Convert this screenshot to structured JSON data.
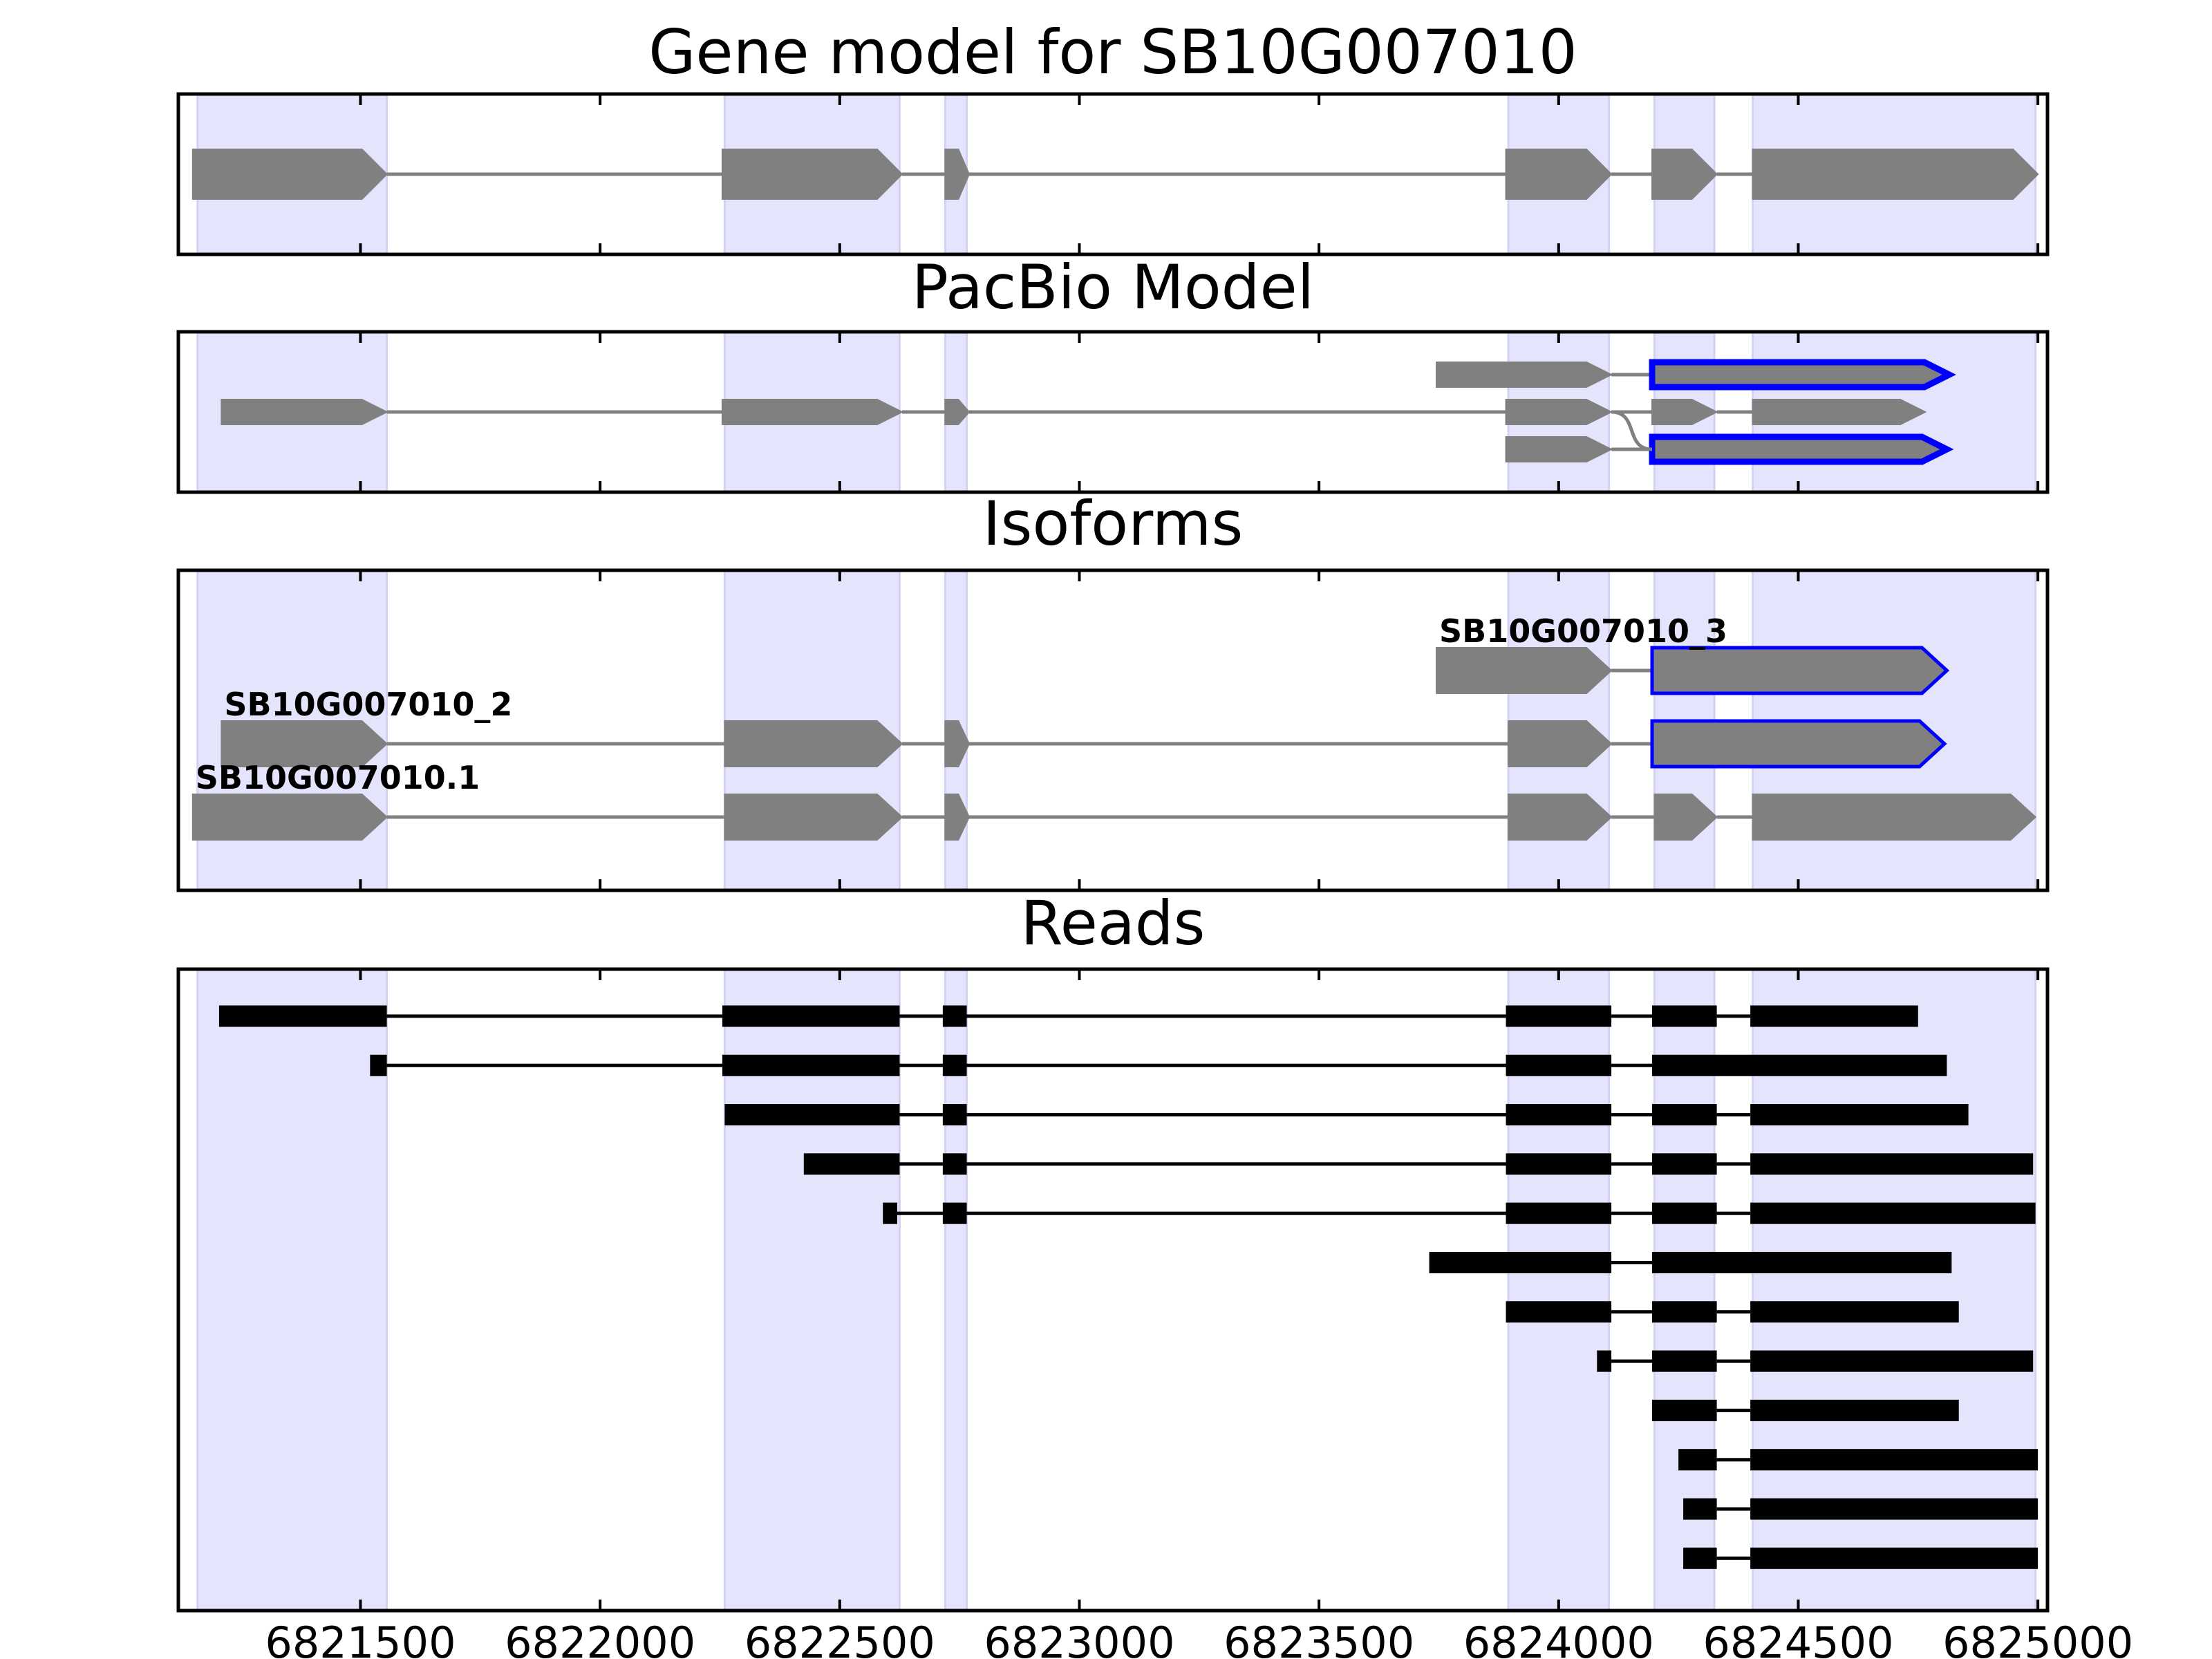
{
  "chart_data": {
    "type": "gene-model-tracks",
    "x_range": [
      6821120,
      6825020
    ],
    "x_ticks": [
      6821500,
      6822000,
      6822500,
      6823000,
      6823500,
      6824000,
      6824500,
      6825000
    ],
    "tick_labels": [
      "6821500",
      "6822000",
      "6822500",
      "6823000",
      "6823500",
      "6824000",
      "6824500",
      "6825000"
    ],
    "colors": {
      "exon_highlight": "#e4e4fc",
      "exon_fill": "#808080",
      "intron_line": "#808080",
      "novel_outline": "#0000ff",
      "read_fill": "#000000"
    },
    "exon_highlights": [
      [
        6821160,
        6821555
      ],
      [
        6822260,
        6822625
      ],
      [
        6822720,
        6822765
      ],
      [
        6823895,
        6824105
      ],
      [
        6824200,
        6824325
      ],
      [
        6824405,
        6824995
      ]
    ],
    "panels": [
      {
        "title": "Gene model for SB10G007010",
        "rows": 1,
        "tracks": [
          {
            "row": 0,
            "exons": [
              [
                6821150,
                6821555
              ],
              [
                6822255,
                6822630
              ],
              [
                6822720,
                6822770
              ],
              [
                6823890,
                6824110
              ],
              [
                6824195,
                6824330
              ],
              [
                6824405,
                6825000
              ]
            ]
          }
        ]
      },
      {
        "title": "PacBio Model",
        "rows": 3,
        "tracks": [
          {
            "row": 0,
            "exons": [
              [
                6823745,
                6824110
              ]
            ],
            "novel": [
              [
                6824195,
                6824815
              ]
            ]
          },
          {
            "row": 1,
            "exons": [
              [
                6821210,
                6821555
              ],
              [
                6822255,
                6822630
              ],
              [
                6822720,
                6822770
              ],
              [
                6823890,
                6824110
              ],
              [
                6824195,
                6824330
              ],
              [
                6824405,
                6824765
              ]
            ]
          },
          {
            "row": 2,
            "exons": [
              [
                6823890,
                6824110
              ]
            ],
            "novel": [
              [
                6824195,
                6824810
              ]
            ]
          }
        ]
      },
      {
        "title": "Isoforms",
        "rows": 3,
        "tracks": [
          {
            "row": 0,
            "label": "SB10G007010_3",
            "exons": [
              [
                6823745,
                6824110
              ]
            ],
            "novel": [
              [
                6824195,
                6824810
              ]
            ]
          },
          {
            "row": 1,
            "label": "SB10G007010_2",
            "exons": [
              [
                6821210,
                6821555
              ],
              [
                6822260,
                6822630
              ],
              [
                6822720,
                6822770
              ],
              [
                6823895,
                6824110
              ]
            ],
            "novel": [
              [
                6824195,
                6824805
              ]
            ]
          },
          {
            "row": 2,
            "label": "SB10G007010.1",
            "exons": [
              [
                6821150,
                6821555
              ],
              [
                6822260,
                6822630
              ],
              [
                6822720,
                6822770
              ],
              [
                6823895,
                6824110
              ],
              [
                6824200,
                6824330
              ],
              [
                6824405,
                6824995
              ]
            ]
          }
        ]
      },
      {
        "title": "Reads",
        "rows": 12,
        "tracks": [
          {
            "row": 0,
            "exons": [
              [
                6821205,
                6821555
              ],
              [
                6822255,
                6822625
              ],
              [
                6822715,
                6822765
              ],
              [
                6823890,
                6824110
              ],
              [
                6824195,
                6824330
              ],
              [
                6824400,
                6824750
              ]
            ]
          },
          {
            "row": 1,
            "exons": [
              [
                6821520,
                6821555
              ],
              [
                6822255,
                6822625
              ],
              [
                6822715,
                6822765
              ],
              [
                6823890,
                6824110
              ],
              [
                6824195,
                6824810
              ]
            ]
          },
          {
            "row": 2,
            "exons": [
              [
                6822260,
                6822625
              ],
              [
                6822715,
                6822765
              ],
              [
                6823890,
                6824110
              ],
              [
                6824195,
                6824330
              ],
              [
                6824400,
                6824855
              ]
            ]
          },
          {
            "row": 3,
            "exons": [
              [
                6822425,
                6822625
              ],
              [
                6822715,
                6822765
              ],
              [
                6823890,
                6824110
              ],
              [
                6824195,
                6824330
              ],
              [
                6824400,
                6824990
              ]
            ]
          },
          {
            "row": 4,
            "exons": [
              [
                6822590,
                6822620
              ],
              [
                6822715,
                6822765
              ],
              [
                6823890,
                6824110
              ],
              [
                6824195,
                6824330
              ],
              [
                6824400,
                6824995
              ]
            ]
          },
          {
            "row": 5,
            "exons": [
              [
                6823730,
                6824110
              ],
              [
                6824195,
                6824820
              ]
            ]
          },
          {
            "row": 6,
            "exons": [
              [
                6823890,
                6824110
              ],
              [
                6824195,
                6824330
              ],
              [
                6824400,
                6824835
              ]
            ]
          },
          {
            "row": 7,
            "exons": [
              [
                6824080,
                6824110
              ],
              [
                6824195,
                6824330
              ],
              [
                6824400,
                6824990
              ]
            ]
          },
          {
            "row": 8,
            "exons": [
              [
                6824195,
                6824330
              ],
              [
                6824400,
                6824835
              ]
            ]
          },
          {
            "row": 9,
            "exons": [
              [
                6824250,
                6824330
              ],
              [
                6824400,
                6825000
              ]
            ]
          },
          {
            "row": 10,
            "exons": [
              [
                6824260,
                6824330
              ],
              [
                6824400,
                6825000
              ]
            ]
          },
          {
            "row": 11,
            "exons": [
              [
                6824260,
                6824330
              ],
              [
                6824400,
                6825000
              ]
            ]
          }
        ]
      }
    ]
  }
}
